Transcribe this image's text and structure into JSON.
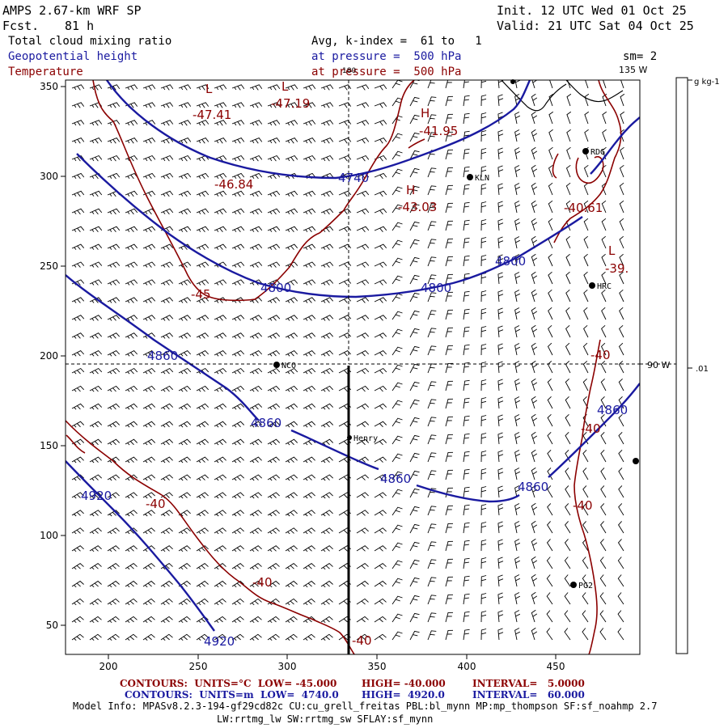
{
  "header": {
    "model": "AMPS 2.67-km WRF SP",
    "fcst_label": "Fcst.",
    "fcst_value": "81 h",
    "init": "Init. 12 UTC Wed 01 Oct 25",
    "valid": "Valid: 21 UTC Sat 04 Oct 25",
    "field1": "Total cloud mixing ratio",
    "field2": "Geopotential height",
    "field3": "Temperature",
    "avg": "Avg, k-index =  61 to   1",
    "press1": "at pressure =  500 hPa",
    "press2": "at pressure =  500 hPa",
    "sm": "sm= 2"
  },
  "colors": {
    "height": "#1a1aa0",
    "temperature": "#8b0000",
    "barb": "#000000"
  },
  "axes": {
    "x_ticks": [
      "200",
      "250",
      "300",
      "350",
      "400",
      "450"
    ],
    "y_ticks": [
      "350",
      "300",
      "250",
      "200",
      "150",
      "100",
      "50"
    ]
  },
  "lon_labels": {
    "top": "135 W",
    "top_mark": "180",
    "right": "90 W"
  },
  "colorbar": {
    "unit": "g kg-1",
    "value": ".01"
  },
  "stations": [
    {
      "id": "NCO",
      "label": "NCO"
    },
    {
      "id": "KLN",
      "label": "KLN"
    },
    {
      "id": "RDG",
      "label": "RDG"
    },
    {
      "id": "HRC",
      "label": "HRC"
    },
    {
      "id": "Henry",
      "label": "Henry"
    },
    {
      "id": "PG2",
      "label": "PG2"
    }
  ],
  "height_labels": [
    "4740",
    "4800",
    "4800",
    "4800",
    "4860",
    "4860",
    "4860",
    "4860",
    "4860",
    "4920",
    "4920"
  ],
  "temp_labels": [
    "-47.41",
    "-47.19",
    "-46.84",
    "-41.95",
    "-43.03",
    "-40.61",
    "-39.",
    "-45",
    "-40",
    "-40",
    "-40",
    "-40",
    "-40",
    "-40"
  ],
  "pressure_centers": [
    "L",
    "L",
    "H",
    "H",
    "L"
  ],
  "footer": {
    "line1_a": "CONTOURS:  UNITS=°C  LOW= -45.000",
    "line1_b": "HIGH= -40.000",
    "line1_c": "INTERVAL=   5.0000",
    "line2_a": "CONTOURS:  UNITS=m  LOW=  4740.0",
    "line2_b": "HIGH=  4920.0",
    "line2_c": "INTERVAL=   60.000",
    "line3": "Model Info: MPASv8.2.3-194-gf29cd82c CU:cu_grell_freitas PBL:bl_mynn MP:mp_thompson SF:sf_noahmp 2.7",
    "line4": "LW:rrtmg_lw SW:rrtmg_sw SFLAY:sf_mynn"
  }
}
